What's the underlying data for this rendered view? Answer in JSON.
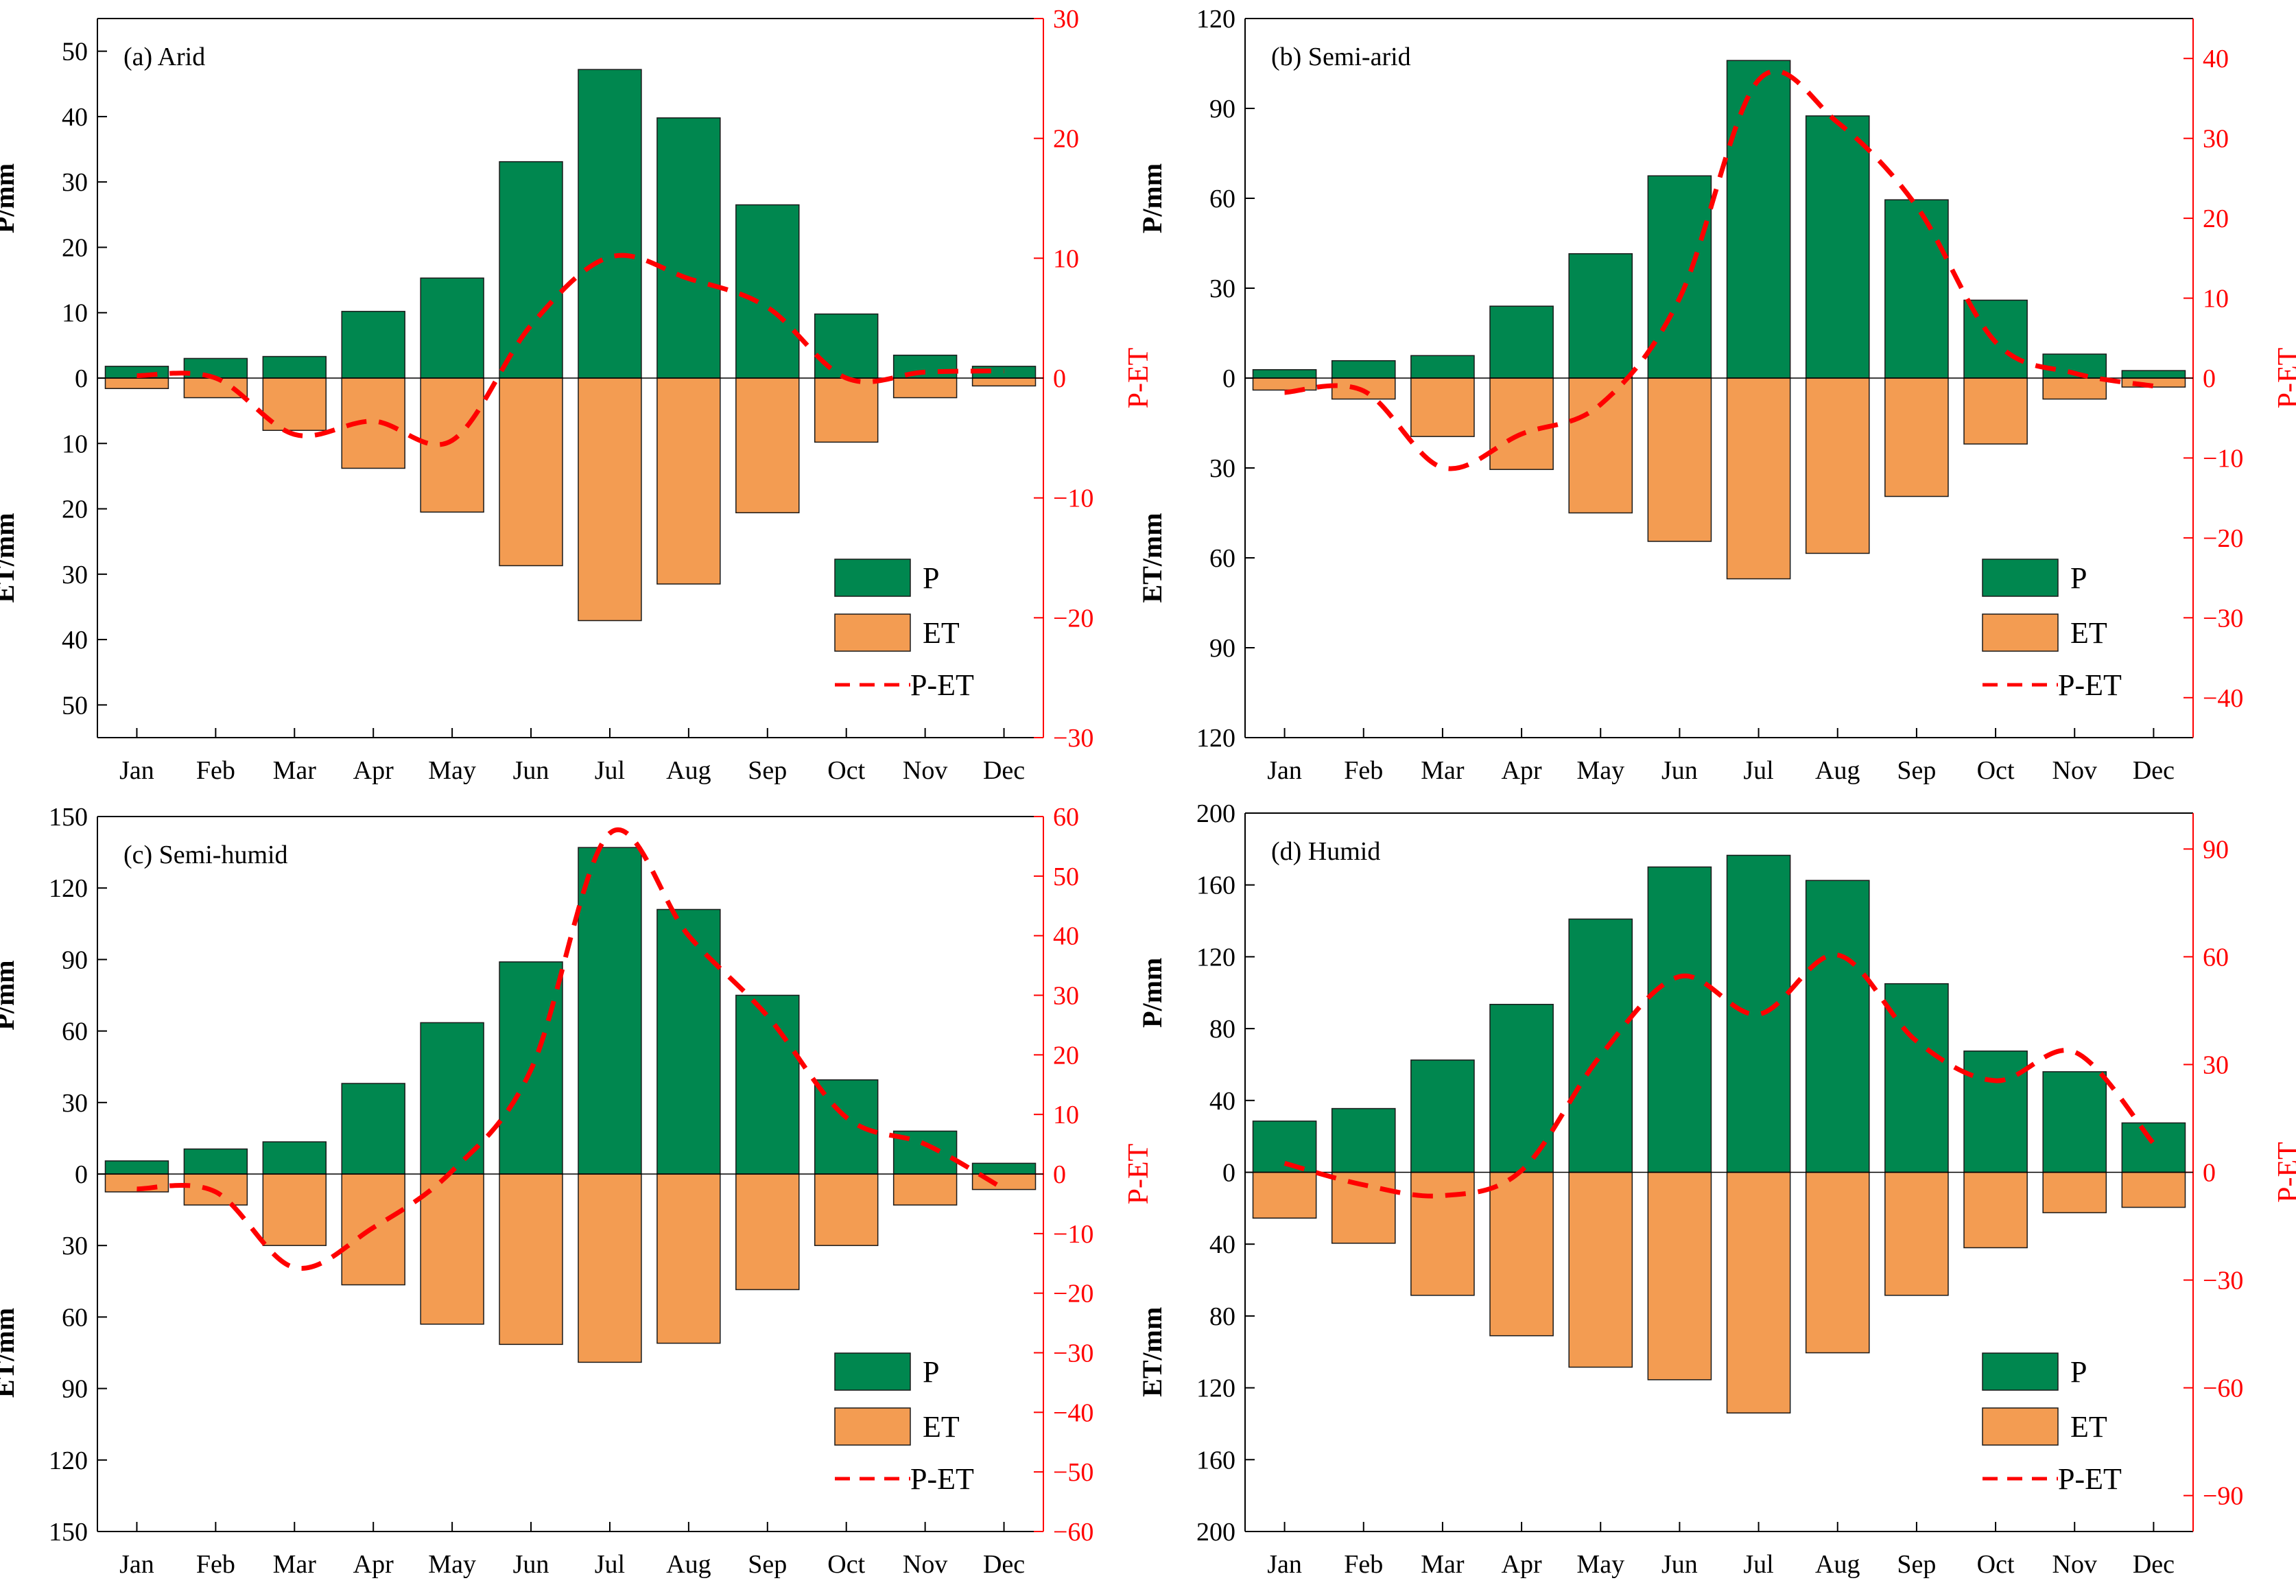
{
  "colors": {
    "p_fill": "#00874f",
    "et_fill": "#f39c52",
    "line": "#ff0000",
    "axis": "#000000",
    "right_axis": "#ff0000"
  },
  "legend": {
    "p": "P",
    "et": "ET",
    "pet": "P-ET"
  },
  "chart_data": [
    {
      "type": "bar",
      "title": "(a) Arid",
      "categories": [
        "Jan",
        "Feb",
        "Mar",
        "Apr",
        "May",
        "Jun",
        "Jul",
        "Aug",
        "Sep",
        "Oct",
        "Nov",
        "Dec"
      ],
      "ylabel_top": "P/mm",
      "ylabel_bottom": "ET/mm",
      "ylabel_right": "P-ET",
      "ylim": [
        -55,
        55
      ],
      "yticks_left": [
        50,
        40,
        30,
        20,
        10,
        0,
        10,
        20,
        30,
        40,
        50
      ],
      "ylim_right": [
        -30,
        30
      ],
      "yticks_right": [
        30,
        20,
        10,
        0,
        -10,
        -20,
        -30
      ],
      "series": [
        {
          "name": "P",
          "values": [
            1.8,
            3.0,
            3.3,
            10.2,
            15.3,
            33.1,
            47.2,
            39.8,
            26.5,
            9.8,
            3.5,
            1.8
          ]
        },
        {
          "name": "ET",
          "values": [
            1.6,
            3.0,
            8.0,
            13.8,
            20.5,
            28.7,
            37.1,
            31.5,
            20.6,
            9.8,
            3.0,
            1.2
          ]
        },
        {
          "name": "P-ET",
          "values": [
            0.2,
            0.0,
            -4.7,
            -3.6,
            -5.2,
            4.4,
            10.1,
            8.3,
            5.9,
            0.0,
            0.5,
            0.6
          ]
        }
      ]
    },
    {
      "type": "bar",
      "title": "(b) Semi-arid",
      "categories": [
        "Jan",
        "Feb",
        "Mar",
        "Apr",
        "May",
        "Jun",
        "Jul",
        "Aug",
        "Sep",
        "Oct",
        "Nov",
        "Dec"
      ],
      "ylabel_top": "P/mm",
      "ylabel_bottom": "ET/mm",
      "ylabel_right": "P-ET",
      "ylim": [
        -120,
        120
      ],
      "yticks_left": [
        120,
        90,
        60,
        30,
        0,
        30,
        60,
        90,
        120
      ],
      "ylim_right": [
        -45,
        45
      ],
      "yticks_right": [
        40,
        30,
        20,
        10,
        0,
        -10,
        -20,
        -30,
        -40
      ],
      "series": [
        {
          "name": "P",
          "values": [
            2.8,
            5.8,
            7.5,
            24.0,
            41.5,
            67.5,
            106.0,
            87.5,
            59.5,
            26.0,
            8.0,
            2.5
          ]
        },
        {
          "name": "ET",
          "values": [
            4.0,
            7.0,
            19.5,
            30.5,
            45.0,
            54.5,
            67.0,
            58.5,
            39.5,
            22.0,
            7.0,
            3.0
          ]
        },
        {
          "name": "P-ET",
          "values": [
            -1.8,
            -1.6,
            -11.2,
            -7.0,
            -3.3,
            10.0,
            37.3,
            32.0,
            21.5,
            4.5,
            0.6,
            -1.0
          ]
        }
      ]
    },
    {
      "type": "bar",
      "title": "(c) Semi-humid",
      "categories": [
        "Jan",
        "Feb",
        "Mar",
        "Apr",
        "May",
        "Jun",
        "Jul",
        "Aug",
        "Sep",
        "Oct",
        "Nov",
        "Dec"
      ],
      "ylabel_top": "P/mm",
      "ylabel_bottom": "ET/mm",
      "ylabel_right": "P-ET",
      "ylim": [
        -150,
        150
      ],
      "yticks_left": [
        150,
        120,
        90,
        60,
        30,
        0,
        30,
        60,
        90,
        120,
        150
      ],
      "ylim_right": [
        -60,
        60
      ],
      "yticks_right": [
        60,
        50,
        40,
        30,
        20,
        10,
        0,
        -10,
        -20,
        -30,
        -40,
        -50,
        -60
      ],
      "series": [
        {
          "name": "P",
          "values": [
            5.5,
            10.5,
            13.5,
            38.0,
            63.5,
            89.0,
            137.0,
            111.0,
            75.0,
            39.5,
            18.0,
            4.5
          ]
        },
        {
          "name": "ET",
          "values": [
            7.5,
            13.0,
            30.0,
            46.5,
            63.0,
            71.5,
            79.0,
            71.0,
            48.5,
            30.0,
            13.0,
            6.5
          ]
        },
        {
          "name": "P-ET",
          "values": [
            -2.5,
            -3.0,
            -15.7,
            -9.0,
            0.5,
            17.5,
            57.2,
            40.0,
            26.5,
            9.5,
            5.0,
            -2.5
          ]
        }
      ]
    },
    {
      "type": "bar",
      "title": "(d) Humid",
      "categories": [
        "Jan",
        "Feb",
        "Mar",
        "Apr",
        "May",
        "Jun",
        "Jul",
        "Aug",
        "Sep",
        "Oct",
        "Nov",
        "Dec"
      ],
      "ylabel_top": "P/mm",
      "ylabel_bottom": "ET/mm",
      "ylabel_right": "P-ET",
      "ylim": [
        -200,
        200
      ],
      "yticks_left": [
        200,
        160,
        120,
        80,
        40,
        0,
        40,
        80,
        120,
        160,
        200
      ],
      "ylim_right": [
        -100,
        100
      ],
      "yticks_right": [
        90,
        60,
        30,
        0,
        -30,
        -60,
        -90
      ],
      "series": [
        {
          "name": "P",
          "values": [
            28.5,
            35.5,
            62.5,
            93.5,
            141.0,
            170.0,
            176.5,
            162.5,
            105.0,
            67.5,
            56.0,
            27.5
          ]
        },
        {
          "name": "ET",
          "values": [
            25.5,
            39.5,
            68.5,
            91.0,
            108.5,
            115.5,
            134.0,
            100.5,
            68.5,
            42.0,
            22.5,
            19.5
          ]
        },
        {
          "name": "P-ET",
          "values": [
            2.5,
            -3.5,
            -6.5,
            0.5,
            32.5,
            54.5,
            44.0,
            60.5,
            36.5,
            25.5,
            33.5,
            8.0
          ]
        }
      ]
    }
  ]
}
